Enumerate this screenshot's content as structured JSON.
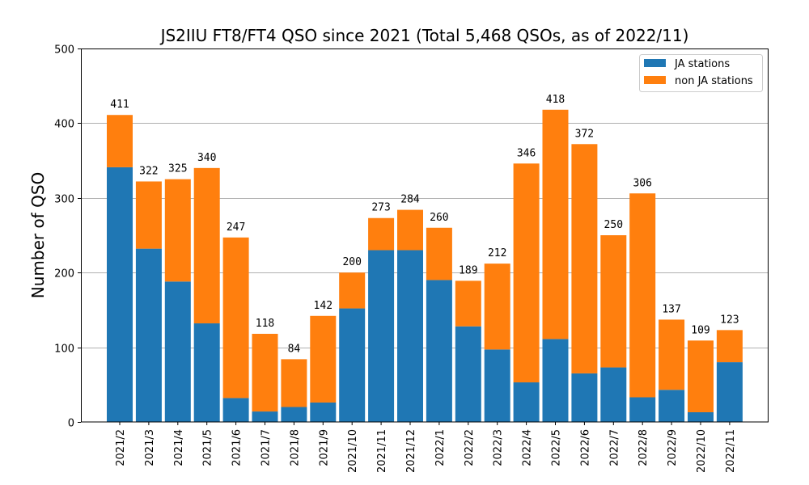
{
  "chart_data": {
    "type": "bar",
    "stacked": true,
    "title": "JS2IIU FT8/FT4 QSO since 2021 (Total 5,468 QSOs, as of 2022/11)",
    "xlabel": "",
    "ylabel": "Number of QSO",
    "ylim": [
      0,
      500
    ],
    "yticks": [
      0,
      100,
      200,
      300,
      400,
      500
    ],
    "grid": "y",
    "legend_position": "top-right",
    "categories": [
      "2021/2",
      "2021/3",
      "2021/4",
      "2021/5",
      "2021/6",
      "2021/7",
      "2021/8",
      "2021/9",
      "2021/10",
      "2021/11",
      "2021/12",
      "2022/1",
      "2022/2",
      "2022/3",
      "2022/4",
      "2022/5",
      "2022/6",
      "2022/7",
      "2022/8",
      "2022/9",
      "2022/10",
      "2022/11"
    ],
    "series": [
      {
        "name": "JA stations",
        "color": "#1f77b4",
        "values": [
          341,
          232,
          188,
          132,
          32,
          14,
          20,
          26,
          152,
          230,
          230,
          190,
          128,
          97,
          53,
          111,
          65,
          73,
          33,
          43,
          13,
          80
        ]
      },
      {
        "name": "non JA stations",
        "color": "#ff7f0e",
        "values": [
          70,
          90,
          137,
          208,
          215,
          104,
          64,
          116,
          48,
          43,
          54,
          70,
          61,
          115,
          293,
          307,
          307,
          177,
          273,
          94,
          96,
          43
        ]
      }
    ],
    "totals": [
      411,
      322,
      325,
      340,
      247,
      118,
      84,
      142,
      200,
      273,
      284,
      260,
      189,
      212,
      346,
      418,
      372,
      250,
      306,
      137,
      109,
      123
    ]
  }
}
